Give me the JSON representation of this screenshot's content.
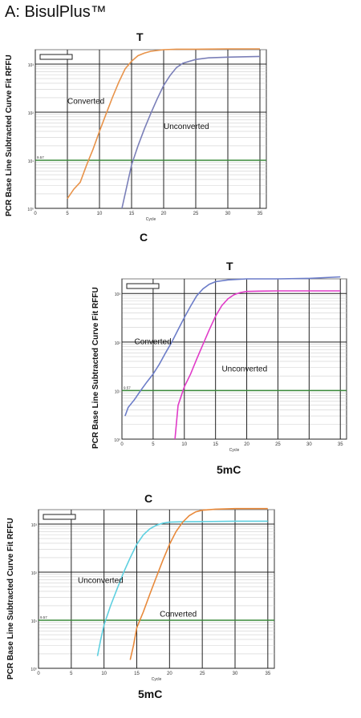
{
  "figure": {
    "panel_title": "A: BisulPlus™"
  },
  "chart_data": [
    {
      "type": "line",
      "top_label": "T",
      "bottom_label": "C",
      "ylabel": "PCR Base Line Subtracted Curve Fit RFFU",
      "xlabel": "Cycle",
      "xticks": [
        0,
        5,
        10,
        15,
        20,
        25,
        30,
        35
      ],
      "yticks": [
        "10⁰",
        "10¹",
        "10²",
        "10³"
      ],
      "ylog": true,
      "ylim": [
        1,
        2000
      ],
      "xlim": [
        0,
        36
      ],
      "threshold": {
        "label": "9.57",
        "value": 10,
        "color": "#3a8a3a"
      },
      "grid": true,
      "series": [
        {
          "name": "Converted",
          "color": "#e8934a",
          "x": [
            5,
            6,
            7,
            8,
            9,
            10,
            11,
            12,
            13,
            14,
            15,
            16,
            17,
            18,
            20,
            22,
            25,
            30,
            35
          ],
          "y": [
            1.6,
            2.5,
            3.5,
            8,
            17,
            40,
            90,
            200,
            420,
            800,
            1150,
            1500,
            1700,
            1850,
            2000,
            2050,
            2050,
            2080,
            2080
          ]
        },
        {
          "name": "Unconverted",
          "color": "#7a7fb8",
          "x": [
            13.5,
            14,
            15,
            16,
            17,
            18,
            19,
            20,
            21,
            22,
            23,
            25,
            27,
            30,
            35
          ],
          "y": [
            1,
            2,
            8,
            20,
            45,
            95,
            190,
            360,
            580,
            850,
            1050,
            1250,
            1350,
            1400,
            1450
          ]
        }
      ],
      "annotations": [
        {
          "text": "Converted",
          "x": 5,
          "y": 150
        },
        {
          "text": "Unconverted",
          "x": 20,
          "y": 45
        }
      ]
    },
    {
      "type": "line",
      "top_label": "T",
      "bottom_label": "5mC",
      "ylabel": "PCR Base Line Subtracted Curve Fit RFFU",
      "xlabel": "Cycle",
      "xticks": [
        0,
        5,
        10,
        15,
        20,
        25,
        30,
        35
      ],
      "yticks": [
        "10⁰",
        "10¹",
        "10²",
        "10³"
      ],
      "ylog": true,
      "ylim": [
        1,
        2000
      ],
      "xlim": [
        0,
        36
      ],
      "threshold": {
        "label": "9.57",
        "value": 10,
        "color": "#3a8a3a"
      },
      "grid": true,
      "series": [
        {
          "name": "Converted",
          "color": "#6b7cc8",
          "x": [
            0.5,
            1,
            2,
            3,
            4,
            5,
            6,
            7,
            8,
            9,
            10,
            11,
            12,
            13,
            14,
            15,
            17,
            20,
            25,
            30,
            35
          ],
          "y": [
            3,
            4.5,
            6.5,
            10,
            15,
            22,
            35,
            60,
            100,
            180,
            320,
            550,
            900,
            1250,
            1550,
            1750,
            1900,
            2000,
            2000,
            2050,
            2200
          ]
        },
        {
          "name": "Unconverted",
          "color": "#e03cc8",
          "x": [
            8.5,
            9,
            10,
            11,
            12,
            13,
            14,
            15,
            16,
            17,
            18,
            19,
            20,
            22,
            25,
            30,
            35
          ],
          "y": [
            1,
            5,
            12,
            22,
            45,
            90,
            180,
            340,
            560,
            780,
            950,
            1050,
            1100,
            1120,
            1130,
            1130,
            1130
          ]
        }
      ],
      "annotations": [
        {
          "text": "Converted",
          "x": 2,
          "y": 90
        },
        {
          "text": "Unconverted",
          "x": 16,
          "y": 25
        }
      ]
    },
    {
      "type": "line",
      "top_label": "C",
      "bottom_label": "5mC",
      "ylabel": "PCR Base Line Subtracted Curve Fit RFFU",
      "xlabel": "Cycle",
      "xticks": [
        0,
        5,
        10,
        15,
        20,
        25,
        30,
        35
      ],
      "yticks": [
        "10⁰",
        "10¹",
        "10²",
        "10³"
      ],
      "ylog": true,
      "ylim": [
        1,
        2000
      ],
      "xlim": [
        0,
        36
      ],
      "threshold": {
        "label": "9.57",
        "value": 10,
        "color": "#3a8a3a"
      },
      "grid": true,
      "series": [
        {
          "name": "Unconverted",
          "color": "#5fd0e0",
          "x": [
            9,
            9.5,
            10,
            11,
            12,
            13,
            14,
            15,
            16,
            17,
            18,
            19,
            20,
            22,
            25,
            30,
            35
          ],
          "y": [
            1.8,
            4,
            8,
            20,
            45,
            100,
            200,
            380,
            600,
            800,
            950,
            1050,
            1100,
            1120,
            1130,
            1150,
            1150
          ]
        },
        {
          "name": "Converted",
          "color": "#e8893a",
          "x": [
            14,
            14.5,
            15,
            16,
            17,
            18,
            19,
            20,
            21,
            22,
            23,
            24,
            25,
            27,
            30,
            35
          ],
          "y": [
            1.5,
            3,
            7,
            15,
            35,
            80,
            180,
            380,
            700,
            1100,
            1500,
            1800,
            1950,
            2050,
            2100,
            2100
          ]
        }
      ],
      "annotations": [
        {
          "text": "Unconverted",
          "x": 6,
          "y": 60
        },
        {
          "text": "Converted",
          "x": 18.5,
          "y": 12
        }
      ]
    }
  ]
}
